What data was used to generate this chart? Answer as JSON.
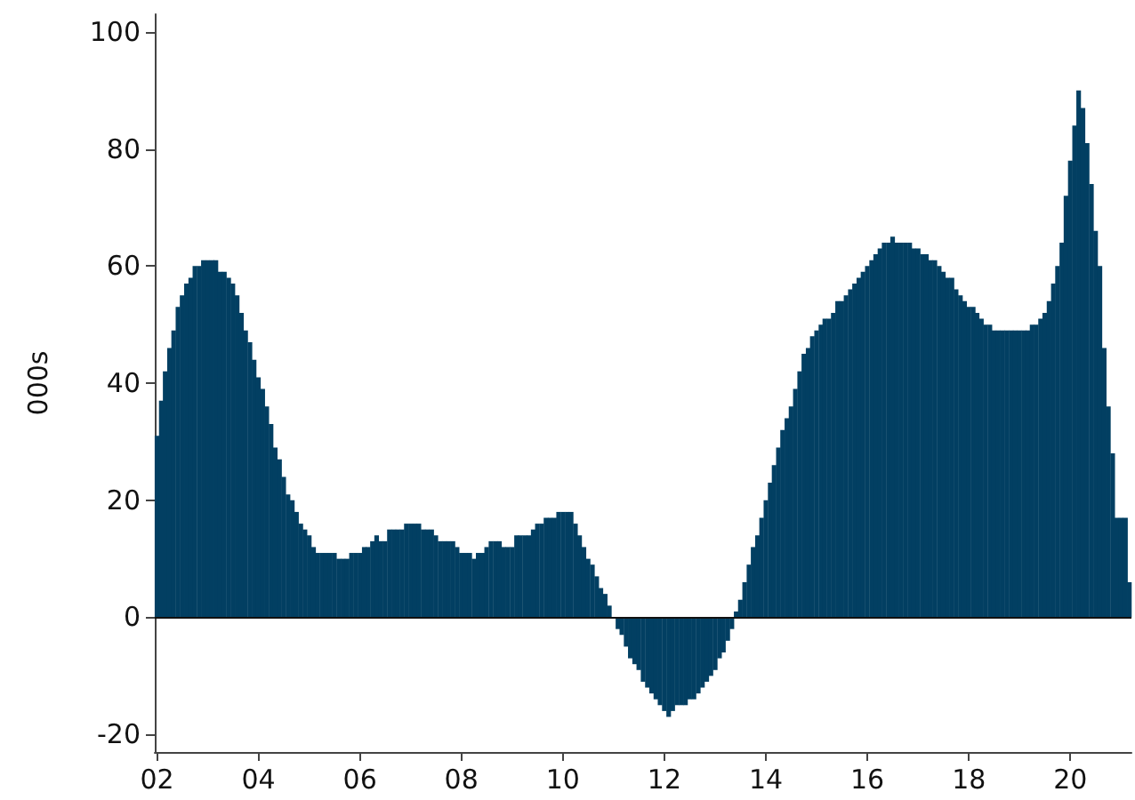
{
  "chart_data": {
    "type": "bar",
    "ylabel": "000s",
    "color": "#023f62",
    "x": [
      "2002-01",
      "2002-02",
      "2002-03",
      "2002-04",
      "2002-05",
      "2002-06",
      "2002-07",
      "2002-08",
      "2002-09",
      "2002-10",
      "2002-11",
      "2002-12",
      "2003-01",
      "2003-02",
      "2003-03",
      "2003-04",
      "2003-05",
      "2003-06",
      "2003-07",
      "2003-08",
      "2003-09",
      "2003-10",
      "2003-11",
      "2003-12",
      "2004-01",
      "2004-02",
      "2004-03",
      "2004-04",
      "2004-05",
      "2004-06",
      "2004-07",
      "2004-08",
      "2004-09",
      "2004-10",
      "2004-11",
      "2004-12",
      "2005-01",
      "2005-02",
      "2005-03",
      "2005-04",
      "2005-05",
      "2005-06",
      "2005-07",
      "2005-08",
      "2005-09",
      "2005-10",
      "2005-11",
      "2005-12",
      "2006-01",
      "2006-02",
      "2006-03",
      "2006-04",
      "2006-05",
      "2006-06",
      "2006-07",
      "2006-08",
      "2006-09",
      "2006-10",
      "2006-11",
      "2006-12",
      "2007-01",
      "2007-02",
      "2007-03",
      "2007-04",
      "2007-05",
      "2007-06",
      "2007-07",
      "2007-08",
      "2007-09",
      "2007-10",
      "2007-11",
      "2007-12",
      "2008-01",
      "2008-02",
      "2008-03",
      "2008-04",
      "2008-05",
      "2008-06",
      "2008-07",
      "2008-08",
      "2008-09",
      "2008-10",
      "2008-11",
      "2008-12",
      "2009-01",
      "2009-02",
      "2009-03",
      "2009-04",
      "2009-05",
      "2009-06",
      "2009-07",
      "2009-08",
      "2009-09",
      "2009-10",
      "2009-11",
      "2009-12",
      "2010-01",
      "2010-02",
      "2010-03",
      "2010-04",
      "2010-05",
      "2010-06",
      "2010-07",
      "2010-08",
      "2010-09",
      "2010-10",
      "2010-11",
      "2010-12",
      "2011-01",
      "2011-02",
      "2011-03",
      "2011-04",
      "2011-05",
      "2011-06",
      "2011-07",
      "2011-08",
      "2011-09",
      "2011-10",
      "2011-11",
      "2011-12",
      "2012-01",
      "2012-02",
      "2012-03",
      "2012-04",
      "2012-05",
      "2012-06",
      "2012-07",
      "2012-08",
      "2012-09",
      "2012-10",
      "2012-11",
      "2012-12",
      "2013-01",
      "2013-02",
      "2013-03",
      "2013-04",
      "2013-05",
      "2013-06",
      "2013-07",
      "2013-08",
      "2013-09",
      "2013-10",
      "2013-11",
      "2013-12",
      "2014-01",
      "2014-02",
      "2014-03",
      "2014-04",
      "2014-05",
      "2014-06",
      "2014-07",
      "2014-08",
      "2014-09",
      "2014-10",
      "2014-11",
      "2014-12",
      "2015-01",
      "2015-02",
      "2015-03",
      "2015-04",
      "2015-05",
      "2015-06",
      "2015-07",
      "2015-08",
      "2015-09",
      "2015-10",
      "2015-11",
      "2015-12",
      "2016-01",
      "2016-02",
      "2016-03",
      "2016-04",
      "2016-05",
      "2016-06",
      "2016-07",
      "2016-08",
      "2016-09",
      "2016-10",
      "2016-11",
      "2016-12",
      "2017-01",
      "2017-02",
      "2017-03",
      "2017-04",
      "2017-05",
      "2017-06",
      "2017-07",
      "2017-08",
      "2017-09",
      "2017-10",
      "2017-11",
      "2017-12",
      "2018-01",
      "2018-02",
      "2018-03",
      "2018-04",
      "2018-05",
      "2018-06",
      "2018-07",
      "2018-08",
      "2018-09",
      "2018-10",
      "2018-11",
      "2018-12",
      "2019-01",
      "2019-02",
      "2019-03",
      "2019-04",
      "2019-05",
      "2019-06",
      "2019-07",
      "2019-08",
      "2019-09",
      "2019-10",
      "2019-11",
      "2019-12",
      "2020-01",
      "2020-02",
      "2020-03",
      "2020-04",
      "2020-05",
      "2020-06",
      "2020-07",
      "2020-08",
      "2020-09",
      "2020-10",
      "2020-11",
      "2020-12",
      "2021-01",
      "2021-02",
      "2021-03"
    ],
    "values": [
      31,
      37,
      42,
      46,
      49,
      53,
      55,
      57,
      58,
      60,
      60,
      61,
      61,
      61,
      61,
      59,
      59,
      58,
      57,
      55,
      52,
      49,
      47,
      44,
      41,
      39,
      36,
      33,
      29,
      27,
      24,
      21,
      20,
      18,
      16,
      15,
      14,
      12,
      11,
      11,
      11,
      11,
      11,
      10,
      10,
      10,
      11,
      11,
      11,
      12,
      12,
      13,
      14,
      13,
      13,
      15,
      15,
      15,
      15,
      16,
      16,
      16,
      16,
      15,
      15,
      15,
      14,
      13,
      13,
      13,
      13,
      12,
      11,
      11,
      11,
      10,
      11,
      11,
      12,
      13,
      13,
      13,
      12,
      12,
      12,
      14,
      14,
      14,
      14,
      15,
      16,
      16,
      17,
      17,
      17,
      18,
      18,
      18,
      18,
      16,
      14,
      12,
      10,
      9,
      7,
      5,
      4,
      2,
      0,
      -2,
      -3,
      -5,
      -7,
      -8,
      -9,
      -11,
      -12,
      -13,
      -14,
      -15,
      -16,
      -17,
      -16,
      -15,
      -15,
      -15,
      -14,
      -14,
      -13,
      -12,
      -11,
      -10,
      -9,
      -7,
      -6,
      -4,
      -2,
      1,
      3,
      6,
      9,
      12,
      14,
      17,
      20,
      23,
      26,
      29,
      32,
      34,
      36,
      39,
      42,
      45,
      46,
      48,
      49,
      50,
      51,
      51,
      52,
      54,
      54,
      55,
      56,
      57,
      58,
      59,
      60,
      61,
      62,
      63,
      64,
      64,
      65,
      64,
      64,
      64,
      64,
      63,
      63,
      62,
      62,
      61,
      61,
      60,
      59,
      58,
      58,
      56,
      55,
      54,
      53,
      53,
      52,
      51,
      50,
      50,
      49,
      49,
      49,
      49,
      49,
      49,
      49,
      49,
      49,
      50,
      50,
      51,
      52,
      54,
      57,
      60,
      64,
      72,
      78,
      84,
      90,
      87,
      81,
      74,
      66,
      60,
      46,
      36,
      28,
      17,
      17,
      17,
      6
    ],
    "xlim": [
      "2001-12-16",
      "2021-03-16"
    ],
    "xticks": [
      {
        "value": "2002-01",
        "label": "02"
      },
      {
        "value": "2004-01",
        "label": "04"
      },
      {
        "value": "2006-01",
        "label": "06"
      },
      {
        "value": "2008-01",
        "label": "08"
      },
      {
        "value": "2010-01",
        "label": "10"
      },
      {
        "value": "2012-01",
        "label": "12"
      },
      {
        "value": "2014-01",
        "label": "14"
      },
      {
        "value": "2016-01",
        "label": "16"
      },
      {
        "value": "2018-01",
        "label": "18"
      },
      {
        "value": "2020-01",
        "label": "20"
      }
    ],
    "ylim": [
      -23,
      103
    ],
    "yticks": [
      -20,
      0,
      20,
      40,
      60,
      80,
      100
    ],
    "ref_lines": [
      {
        "axis": "y",
        "value": 0,
        "color": "#111111"
      }
    ],
    "grid": false
  }
}
